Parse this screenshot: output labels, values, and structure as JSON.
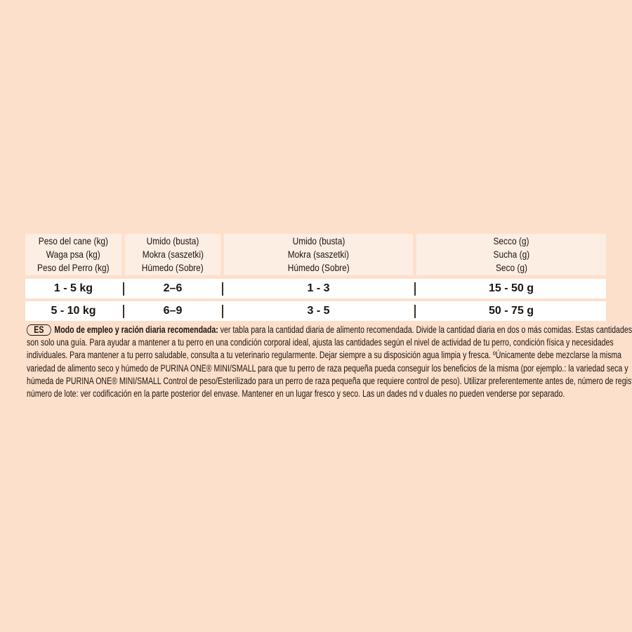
{
  "table": {
    "headers": [
      [
        "Peso del cane (kg)",
        "Waga psa (kg)",
        "Peso del Perro (kg)"
      ],
      [
        "Umido (busta)",
        "Mokra (saszetki)",
        "Húmedo (Sobre)"
      ],
      [
        "Umido (busta)",
        "Mokra (saszetki)",
        "Húmedo (Sobre)"
      ],
      [
        "Secco (g)",
        "Sucha (g)",
        "Seco (g)"
      ]
    ],
    "rows": [
      [
        "1 - 5 kg",
        "2–6",
        "1 - 3",
        "15 - 50 g"
      ],
      [
        "5 - 10 kg",
        "6–9",
        "3 - 5",
        "50 - 75 g"
      ]
    ]
  },
  "text": {
    "lang_badge": "ES",
    "heading": "Modo de empleo y ración diaria recomendada:",
    "lines": [
      " ver tabla para la cantidad diaria de alimento recomendada. Divide la cantidad diaria en dos o más comidas. Estas cantidades",
      "son solo una guía. Para ayudar a mantener a tu perro en una condición corporal ideal, ajusta las cantidades según el nivel de actividad de tu perro, condición física y necesidades",
      "individuales. Para mantener a tu perro saludable, consulta a tu veterinario regularmente. Dejar siempre a su disposición agua limpia y fresca. ºÚnicamente debe mezclarse la misma",
      "variedad de alimento seco y húmedo de PURINA ONE® MINI/SMALL para que tu perro de raza pequeña pueda conseguir los beneficios de la misma (por ejemplo.: la variedad seca y",
      "húmeda de PURINA ONE® MINI/SMALL Control de peso/Esterilizado para un perro de raza pequeña que requiere control de peso). Utilizar preferentemente antes de, número de registro y",
      "número de lote: ver codificación en la parte posterior del envase. Mantener en un lugar fresco y seco. Las un dades  nd v duales no pueden venderse por separado."
    ]
  },
  "colors": {
    "background": "#fde0cb",
    "header_cell": "#fdeee4",
    "row": "#ffffff"
  }
}
